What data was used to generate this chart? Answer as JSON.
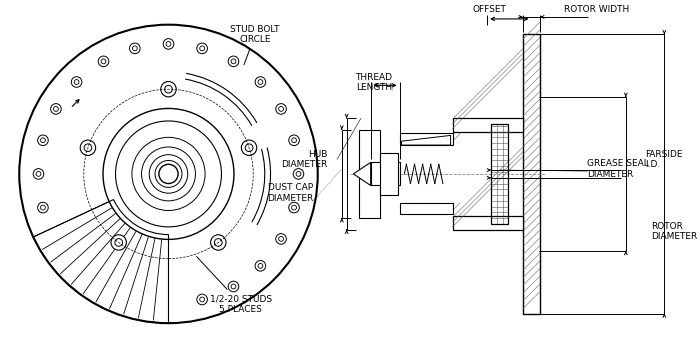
{
  "bg_color": "#ffffff",
  "line_color": "#000000",
  "hatch_color": "#000000",
  "dim_color": "#555555",
  "font_family": "DejaVu Sans",
  "labels": {
    "stud_bolt_circle": "STUD BOLT\nCIRCLE",
    "half_20_studs": "1/2-20 STUDS\n5 PLACES",
    "hub_diameter": "HUB\nDIAMETER",
    "dust_cap_diameter": "DUST CAP\nDIAMETER",
    "thread_length": "THREAD\nLENGTH",
    "offset": "OFFSET",
    "rotor_width": "ROTOR WIDTH",
    "farside_id": "FARSIDE\nI.D.",
    "grease_seal_diameter": "GREASE SEAL\nDIAMETER",
    "rotor_diameter": "ROTOR\nDIAMETER"
  }
}
